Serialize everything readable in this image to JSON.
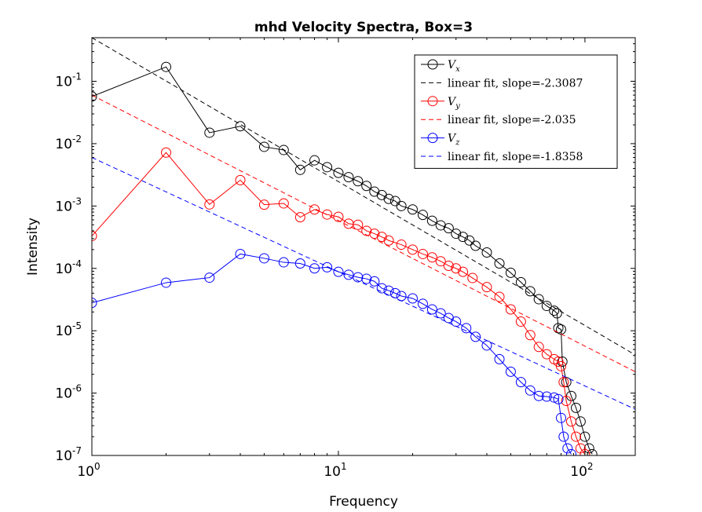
{
  "chart_data": {
    "type": "line",
    "title": "mhd Velocity Spectra, Box=3",
    "xlabel": "Frequency",
    "ylabel": "Intensity",
    "xscale": "log",
    "yscale": "log",
    "xlim": [
      1,
      160
    ],
    "ylim": [
      1e-07,
      0.5
    ],
    "grid": false,
    "legend_position": "top-right",
    "x_ticks": [
      {
        "value": 1,
        "base": "10",
        "exp": "0"
      },
      {
        "value": 10,
        "base": "10",
        "exp": "1"
      },
      {
        "value": 100,
        "base": "10",
        "exp": "2"
      }
    ],
    "y_ticks": [
      {
        "value": 1e-07,
        "base": "10",
        "exp": "-7"
      },
      {
        "value": 1e-06,
        "base": "10",
        "exp": "-6"
      },
      {
        "value": 1e-05,
        "base": "10",
        "exp": "-5"
      },
      {
        "value": 0.0001,
        "base": "10",
        "exp": "-4"
      },
      {
        "value": 0.001,
        "base": "10",
        "exp": "-3"
      },
      {
        "value": 0.01,
        "base": "10",
        "exp": "-2"
      },
      {
        "value": 0.1,
        "base": "10",
        "exp": "-1"
      }
    ],
    "series": [
      {
        "name": "V",
        "subscript": "x",
        "color": "#000000",
        "marker": "circle",
        "points": [
          [
            1,
            0.057
          ],
          [
            2,
            0.17
          ],
          [
            3,
            0.015
          ],
          [
            4,
            0.019
          ],
          [
            5,
            0.0089
          ],
          [
            6,
            0.0079
          ],
          [
            7,
            0.0038
          ],
          [
            8,
            0.0054
          ],
          [
            9,
            0.0042
          ],
          [
            10,
            0.0034
          ],
          [
            11,
            0.0029
          ],
          [
            12,
            0.0025
          ],
          [
            13,
            0.0021
          ],
          [
            14,
            0.0017
          ],
          [
            15,
            0.0015
          ],
          [
            16,
            0.0013
          ],
          [
            17,
            0.0012
          ],
          [
            18,
            0.001
          ],
          [
            20,
            0.00088
          ],
          [
            22,
            0.00072
          ],
          [
            24,
            0.00058
          ],
          [
            26,
            0.00049
          ],
          [
            28,
            0.00044
          ],
          [
            30,
            0.00036
          ],
          [
            32,
            0.00032
          ],
          [
            34,
            0.00028
          ],
          [
            36,
            0.00023
          ],
          [
            40,
            0.00018
          ],
          [
            45,
            0.00012
          ],
          [
            50,
            8.5e-05
          ],
          [
            55,
            6e-05
          ],
          [
            60,
            4.3e-05
          ],
          [
            65,
            3.2e-05
          ],
          [
            70,
            2.5e-05
          ],
          [
            75,
            2.1e-05
          ],
          [
            77,
            1.9e-05
          ],
          [
            78,
            1.1e-05
          ],
          [
            80,
            1.05e-05
          ],
          [
            81,
            3.2e-06
          ],
          [
            84,
            1.5e-06
          ],
          [
            88,
            9e-07
          ],
          [
            92,
            5.8e-07
          ],
          [
            96,
            3.5e-07
          ],
          [
            100,
            2e-07
          ],
          [
            104,
            1.3e-07
          ],
          [
            107,
            1.05e-07
          ]
        ]
      },
      {
        "name": "linear fit, slope=-2.3087",
        "color": "#000000",
        "dashed": true,
        "points": [
          [
            1,
            0.5
          ],
          [
            160,
            4.1e-06
          ]
        ]
      },
      {
        "name": "V",
        "subscript": "y",
        "color": "#ff0000",
        "marker": "circle",
        "points": [
          [
            1,
            0.00033
          ],
          [
            2,
            0.0072
          ],
          [
            3,
            0.00106
          ],
          [
            4,
            0.0026
          ],
          [
            5,
            0.00105
          ],
          [
            6,
            0.0011
          ],
          [
            7,
            0.00066
          ],
          [
            8,
            0.00088
          ],
          [
            9,
            0.00073
          ],
          [
            10,
            0.00067
          ],
          [
            11,
            0.00052
          ],
          [
            12,
            0.0005
          ],
          [
            13,
            0.0004
          ],
          [
            14,
            0.00036
          ],
          [
            15,
            0.00032
          ],
          [
            16,
            0.00028
          ],
          [
            18,
            0.00024
          ],
          [
            20,
            0.0002
          ],
          [
            22,
            0.00017
          ],
          [
            24,
            0.00015
          ],
          [
            26,
            0.00013
          ],
          [
            28,
            0.00011
          ],
          [
            30,
            0.0001
          ],
          [
            32,
            8.8e-05
          ],
          [
            35,
            7e-05
          ],
          [
            40,
            5e-05
          ],
          [
            45,
            3.5e-05
          ],
          [
            50,
            2.2e-05
          ],
          [
            55,
            1.4e-05
          ],
          [
            60,
            8.5e-06
          ],
          [
            65,
            5.5e-06
          ],
          [
            70,
            4.2e-06
          ],
          [
            75,
            3.5e-06
          ],
          [
            78,
            3.2e-06
          ],
          [
            80,
            2.7e-06
          ],
          [
            82,
            1.5e-06
          ],
          [
            84,
            7.5e-07
          ],
          [
            88,
            3.5e-07
          ],
          [
            92,
            2e-07
          ],
          [
            96,
            1.3e-07
          ],
          [
            100,
            1.05e-07
          ]
        ]
      },
      {
        "name": "linear fit, slope=-2.035",
        "color": "#ff0000",
        "dashed": true,
        "points": [
          [
            1,
            0.06
          ],
          [
            160,
            2.2e-06
          ]
        ]
      },
      {
        "name": "V",
        "subscript": "z",
        "color": "#0000ff",
        "marker": "circle",
        "points": [
          [
            1,
            2.8e-05
          ],
          [
            2,
            5.9e-05
          ],
          [
            3,
            7.1e-05
          ],
          [
            4,
            0.00017
          ],
          [
            5,
            0.000145
          ],
          [
            6,
            0.000125
          ],
          [
            7,
            0.00012
          ],
          [
            8,
            0.0001
          ],
          [
            9,
            0.000104
          ],
          [
            10,
            8.8e-05
          ],
          [
            11,
            7.9e-05
          ],
          [
            12,
            7.2e-05
          ],
          [
            13,
            6.8e-05
          ],
          [
            14,
            6.2e-05
          ],
          [
            15,
            4.8e-05
          ],
          [
            16,
            4.4e-05
          ],
          [
            17,
            4e-05
          ],
          [
            18,
            3.6e-05
          ],
          [
            20,
            3.3e-05
          ],
          [
            22,
            2.7e-05
          ],
          [
            24,
            2.2e-05
          ],
          [
            26,
            1.9e-05
          ],
          [
            28,
            1.6e-05
          ],
          [
            30,
            1.4e-05
          ],
          [
            33,
            1.1e-05
          ],
          [
            36,
            8e-06
          ],
          [
            40,
            5.8e-06
          ],
          [
            45,
            3.5e-06
          ],
          [
            50,
            2.2e-06
          ],
          [
            55,
            1.5e-06
          ],
          [
            60,
            1.1e-06
          ],
          [
            65,
            9e-07
          ],
          [
            70,
            8.8e-07
          ],
          [
            75,
            8.5e-07
          ],
          [
            78,
            8e-07
          ],
          [
            80,
            4e-07
          ],
          [
            82,
            2e-07
          ],
          [
            85,
            1.3e-07
          ],
          [
            88,
            1.05e-07
          ]
        ]
      },
      {
        "name": "linear fit, slope=-1.8358",
        "color": "#0000ff",
        "dashed": true,
        "points": [
          [
            1,
            0.006
          ],
          [
            160,
            5.5e-07
          ]
        ]
      }
    ]
  }
}
